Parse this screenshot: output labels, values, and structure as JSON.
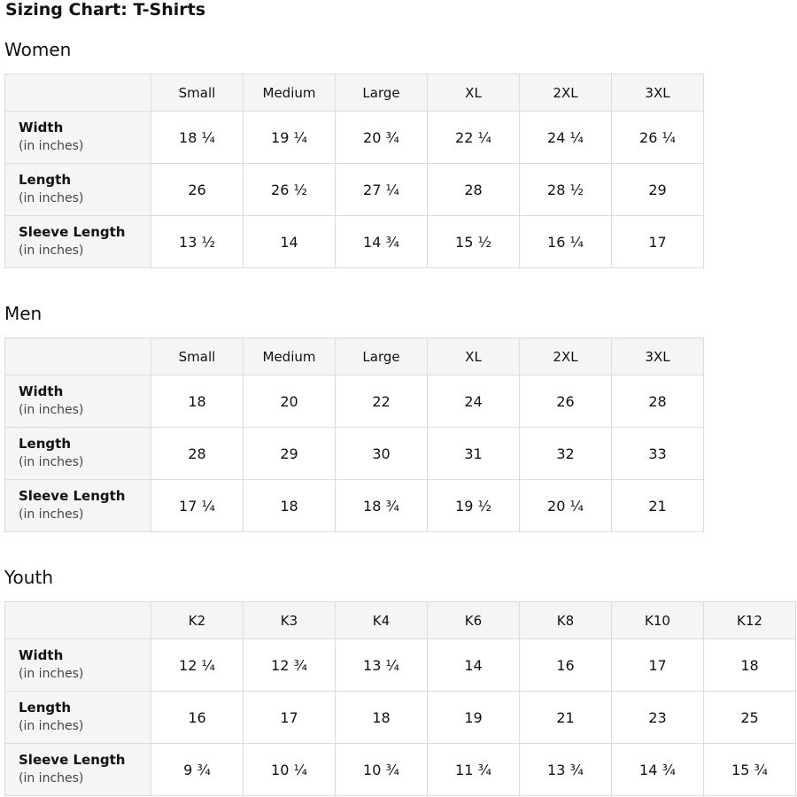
{
  "page_title": "Sizing Chart: T-Shirts",
  "row_unit": "(in inches)",
  "sections": [
    {
      "title": "Women",
      "sizes": [
        "Small",
        "Medium",
        "Large",
        "XL",
        "2XL",
        "3XL"
      ],
      "rows": [
        {
          "label": "Width",
          "unit": "(in inches)",
          "values": [
            "18 ¼",
            "19 ¼",
            "20 ¾",
            "22 ¼",
            "24 ¼",
            "26 ¼"
          ]
        },
        {
          "label": "Length",
          "unit": "(in inches)",
          "values": [
            "26",
            "26 ½",
            "27 ¼",
            "28",
            "28 ½",
            "29"
          ]
        },
        {
          "label": "Sleeve Length",
          "unit": "(in inches)",
          "values": [
            "13 ½",
            "14",
            "14 ¾",
            "15 ½",
            "16 ¼",
            "17"
          ]
        }
      ]
    },
    {
      "title": "Men",
      "sizes": [
        "Small",
        "Medium",
        "Large",
        "XL",
        "2XL",
        "3XL"
      ],
      "rows": [
        {
          "label": "Width",
          "unit": "(in inches)",
          "values": [
            "18",
            "20",
            "22",
            "24",
            "26",
            "28"
          ]
        },
        {
          "label": "Length",
          "unit": "(in inches)",
          "values": [
            "28",
            "29",
            "30",
            "31",
            "32",
            "33"
          ]
        },
        {
          "label": "Sleeve Length",
          "unit": "(in inches)",
          "values": [
            "17 ¼",
            "18",
            "18 ¾",
            "19 ½",
            "20 ¼",
            "21"
          ]
        }
      ]
    },
    {
      "title": "Youth",
      "sizes": [
        "K2",
        "K3",
        "K4",
        "K6",
        "K8",
        "K10",
        "K12"
      ],
      "rows": [
        {
          "label": "Width",
          "unit": "(in inches)",
          "values": [
            "12 ¼",
            "12 ¾",
            "13 ¼",
            "14",
            "16",
            "17",
            "18"
          ]
        },
        {
          "label": "Length",
          "unit": "(in inches)",
          "values": [
            "16",
            "17",
            "18",
            "19",
            "21",
            "23",
            "25"
          ]
        },
        {
          "label": "Sleeve Length",
          "unit": "(in inches)",
          "values": [
            "9 ¾",
            "10 ¼",
            "10 ¾",
            "11 ¾",
            "13 ¾",
            "14 ¾",
            "15 ¾"
          ]
        }
      ]
    }
  ]
}
